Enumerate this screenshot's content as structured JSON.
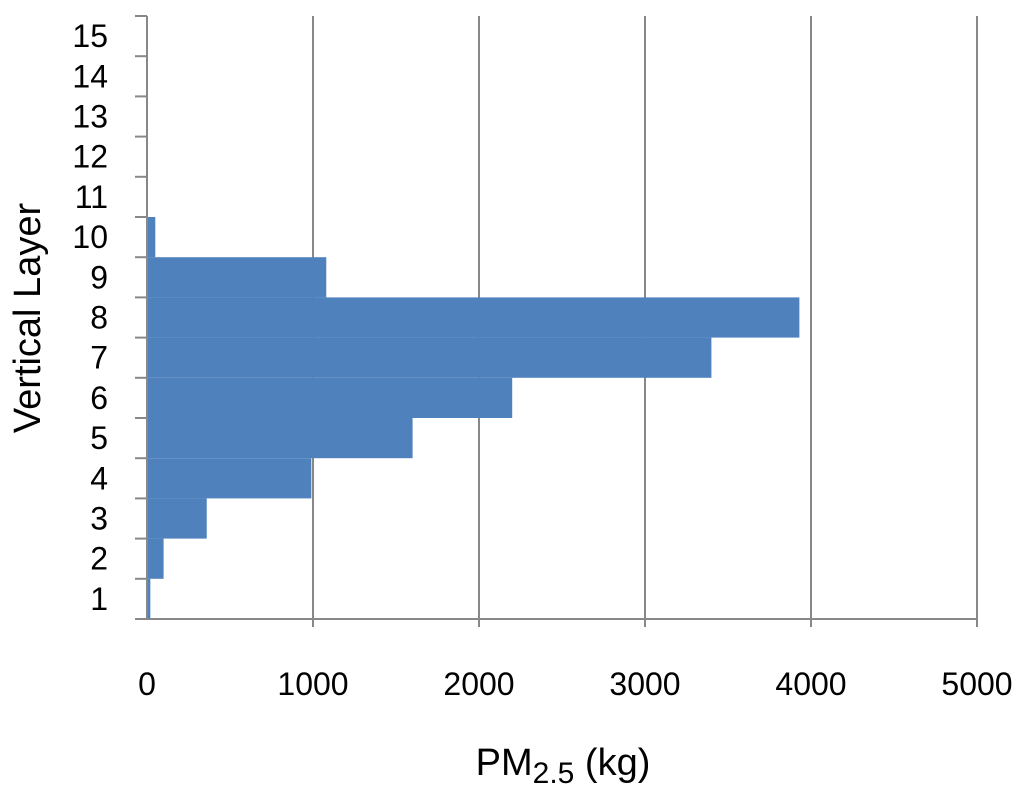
{
  "chart_data": {
    "type": "bar",
    "orientation": "horizontal",
    "categories": [
      "1",
      "2",
      "3",
      "4",
      "5",
      "6",
      "7",
      "8",
      "9",
      "10",
      "11",
      "12",
      "13",
      "14",
      "15"
    ],
    "values": [
      20,
      100,
      360,
      990,
      1600,
      2200,
      3400,
      3930,
      1080,
      50,
      0,
      0,
      0,
      0,
      0
    ],
    "xlabel": {
      "main": "PM",
      "sub": "2.5",
      "tail": " (kg)"
    },
    "ylabel": "Vertical Layer",
    "xlim": [
      0,
      5000
    ],
    "xticks": [
      "0",
      "1000",
      "2000",
      "3000",
      "4000",
      "5000"
    ],
    "grid": "vertical",
    "bar_color": "#4f81bd",
    "gridline_color": "#888888"
  }
}
